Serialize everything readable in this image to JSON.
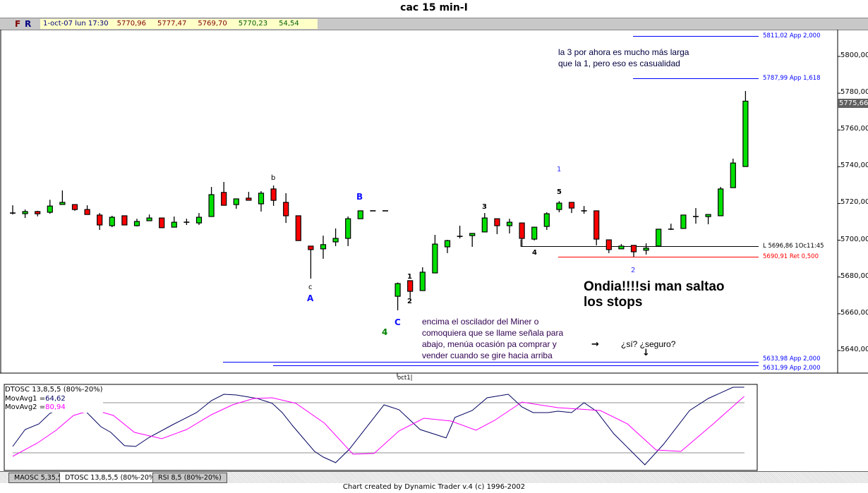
{
  "window": {
    "title": "cac 15 min-I"
  },
  "toolbar": {
    "f_label": "F",
    "r_label": "R",
    "info": {
      "datetime": "1-oct-07 lun 17:30",
      "open": "5770,96",
      "high": "5777,47",
      "low": "5769,70",
      "close": "5770,23",
      "extra": "54,54"
    }
  },
  "price_axis": {
    "ticks": [
      "5800,00",
      "5780,00",
      "5760,00",
      "5740,00",
      "5720,00",
      "5700,00",
      "5680,00",
      "5660,00",
      "5640,00"
    ],
    "tick_values": [
      5800,
      5780,
      5760,
      5740,
      5720,
      5700,
      5680,
      5660,
      5640
    ],
    "current_price": "5775,66"
  },
  "time_axis": {
    "label": "oct1|"
  },
  "levels": [
    {
      "price": 5811.02,
      "label": "5811,02 App 2,000",
      "color": "#0000ff"
    },
    {
      "price": 5787.99,
      "label": "5787,99 App 1,618",
      "color": "#0000ff"
    },
    {
      "price": 5696.86,
      "label": "L 5696,86 1Oc11:45",
      "color": "#000000"
    },
    {
      "price": 5690.91,
      "label": "5690,91 Ret 0,500",
      "color": "#ff0000"
    },
    {
      "price": 5633.98,
      "label": "5633,98 App 2,000",
      "color": "#0000ff"
    },
    {
      "price": 5631.99,
      "label": "5631,99 App 2,000",
      "color": "#0000ff"
    }
  ],
  "wave_labels": {
    "b": "b",
    "c": "c",
    "A": "A",
    "B": "B",
    "C": "C",
    "green4": "4",
    "w1": "1",
    "w2": "2",
    "w3": "3",
    "w4": "4",
    "w5": "5",
    "blue1": "1",
    "blue2": "2"
  },
  "annotations": {
    "top_note": [
      "la 3 por ahora es mucho más larga",
      "que la 1, pero eso es casualidad"
    ],
    "osc_note": [
      "encima el oscilador del Miner o",
      "comoquiera que se llame señala para",
      "abajo, menúa ocasión pa comprar y",
      "vender cuando se gire hacia arriba"
    ],
    "arrow_right": "→",
    "question": "¿sí? ¿seguro?",
    "arrow_down": "↓",
    "big_note": [
      "Ondia!!!!si man saltao",
      "los stops"
    ]
  },
  "colors": {
    "up": "#00e000",
    "down": "#ff0000",
    "osc_line": "#000060",
    "osc_avg": "#ff00ff",
    "level_line": "#909090"
  },
  "chart_data": [
    {
      "type": "candlestick",
      "title": "cac 15 min-I",
      "ylim": [
        5625,
        5815
      ],
      "ohlc": [
        [
          5714.8,
          5719,
          5714,
          5714.8
        ],
        [
          5714.8,
          5716.7,
          5712.1,
          5715.6
        ],
        [
          5715.6,
          5716,
          5713,
          5714.4
        ],
        [
          5715.2,
          5722,
          5714.4,
          5718.6
        ],
        [
          5719.8,
          5727.1,
          5719.8,
          5720.6
        ],
        [
          5719.4,
          5719.4,
          5716,
          5716.7
        ],
        [
          5716.7,
          5719,
          5714,
          5714
        ],
        [
          5713.7,
          5714.8,
          5705.6,
          5708.3
        ],
        [
          5707.9,
          5713.3,
          5707.1,
          5712.5
        ],
        [
          5713.3,
          5713.3,
          5708.3,
          5708.3
        ],
        [
          5707.9,
          5711.7,
          5707.5,
          5710.2
        ],
        [
          5710.6,
          5714,
          5710.6,
          5712.1
        ],
        [
          5712.1,
          5712.1,
          5706.8,
          5706.8
        ],
        [
          5707.1,
          5712.9,
          5707.1,
          5709.8
        ],
        [
          5709.8,
          5711.7,
          5708.3,
          5709.8
        ],
        [
          5709.4,
          5714.8,
          5708.3,
          5712.5
        ],
        [
          5712.9,
          5729,
          5712.9,
          5724.8
        ],
        [
          5726,
          5731.7,
          5719,
          5719
        ],
        [
          5719.4,
          5722.5,
          5717.1,
          5722.5
        ],
        [
          5722.9,
          5726.3,
          5722.1,
          5722.1
        ],
        [
          5719.8,
          5726.7,
          5715.6,
          5725.6
        ],
        [
          5727.9,
          5729.8,
          5718.7,
          5721.7
        ],
        [
          5720.6,
          5725.6,
          5709.4,
          5713.3
        ],
        [
          5713.3,
          5713.3,
          5699.8,
          5699.8
        ],
        [
          5696.8,
          5696.8,
          5679.1,
          5694.9
        ],
        [
          5695.3,
          5702.5,
          5689.9,
          5697.6
        ],
        [
          5699.1,
          5706.4,
          5696.8,
          5701
        ],
        [
          5701,
          5712.9,
          5696.8,
          5711.7
        ],
        [
          5711.7,
          5716,
          5711.7,
          5716
        ],
        [
          5716,
          5716,
          5716,
          5716
        ],
        [
          5716,
          5716,
          5716,
          5716
        ],
        [
          5669.5,
          5677,
          5661.9,
          5676.4
        ],
        [
          5678,
          5678,
          5668.4,
          5672.2
        ],
        [
          5672.6,
          5685.3,
          5672.6,
          5682.6
        ],
        [
          5682.2,
          5702.9,
          5682.2,
          5697.9
        ],
        [
          5696.4,
          5700.2,
          5693,
          5699.8
        ],
        [
          5702.1,
          5707.9,
          5701,
          5702.1
        ],
        [
          5702.5,
          5703.7,
          5696.4,
          5703.7
        ],
        [
          5704.5,
          5714.8,
          5704.5,
          5712.1
        ],
        [
          5711.7,
          5711.7,
          5703.3,
          5707.9
        ],
        [
          5707.9,
          5711.7,
          5703.7,
          5709.8
        ],
        [
          5709.4,
          5709.4,
          5696.8,
          5701
        ],
        [
          5700.6,
          5707.1,
          5699.9,
          5707.1
        ],
        [
          5707.5,
          5715.2,
          5705.6,
          5714.4
        ],
        [
          5716.7,
          5721.3,
          5715.2,
          5720.2
        ],
        [
          5720.6,
          5720.6,
          5714.8,
          5717.5
        ],
        [
          5716,
          5718.6,
          5714.4,
          5716
        ],
        [
          5716,
          5716,
          5697.2,
          5700.6
        ],
        [
          5700.2,
          5700.2,
          5693,
          5694.9
        ],
        [
          5695.3,
          5697.9,
          5695.3,
          5696.8
        ],
        [
          5697.2,
          5697.2,
          5691,
          5693.7
        ],
        [
          5694.9,
          5698.3,
          5692.2,
          5695.7
        ],
        [
          5696.8,
          5706,
          5696.8,
          5706
        ],
        [
          5706,
          5709,
          5705.6,
          5706
        ],
        [
          5706.4,
          5713.7,
          5706.4,
          5713.7
        ],
        [
          5712.9,
          5717.5,
          5709,
          5712.9
        ],
        [
          5712.9,
          5714,
          5708.7,
          5714
        ],
        [
          5713.3,
          5729,
          5713.3,
          5727.9
        ],
        [
          5728.6,
          5744.4,
          5728.6,
          5742
        ],
        [
          5740.1,
          5781.2,
          5740.1,
          5775.66
        ]
      ]
    },
    {
      "type": "line",
      "title": "DTOSC 13,8,5,5 (80%-20%)",
      "ylim": [
        0,
        100
      ],
      "levels": [
        80,
        20
      ],
      "series": [
        {
          "name": "MovAvg1",
          "value_label": "64,62",
          "points": [
            [
              0,
              27.6
            ],
            [
              1,
              47.9
            ],
            [
              2.1,
              54.6
            ],
            [
              3,
              67.3
            ],
            [
              5.2,
              80
            ],
            [
              7.1,
              51.3
            ],
            [
              7.9,
              44.5
            ],
            [
              9,
              28.5
            ],
            [
              9.9,
              27.6
            ],
            [
              11,
              38.6
            ],
            [
              12.9,
              53.8
            ],
            [
              14.8,
              68.2
            ],
            [
              16,
              82.5
            ],
            [
              17,
              90.1
            ],
            [
              18,
              89.3
            ],
            [
              19.7,
              85.1
            ],
            [
              20.9,
              79.2
            ],
            [
              21.7,
              68.2
            ],
            [
              22.6,
              51.3
            ],
            [
              24.3,
              21.7
            ],
            [
              25,
              14.9
            ],
            [
              26,
              8.2
            ],
            [
              27.1,
              24.2
            ],
            [
              29.9,
              77.5
            ],
            [
              31.1,
              71.6
            ],
            [
              32.8,
              47.9
            ],
            [
              34.9,
              37.8
            ],
            [
              35.6,
              62.3
            ],
            [
              37,
              70.7
            ],
            [
              38.2,
              85.9
            ],
            [
              39.9,
              90.1
            ],
            [
              41,
              74.9
            ],
            [
              41.9,
              68.2
            ],
            [
              43.1,
              68.2
            ],
            [
              43.9,
              69.9
            ],
            [
              45,
              68.2
            ],
            [
              46,
              80
            ],
            [
              47,
              69.9
            ],
            [
              48.4,
              42.8
            ],
            [
              50.9,
              5.6
            ],
            [
              52.4,
              30.1
            ],
            [
              54.5,
              70.7
            ],
            [
              56,
              85.1
            ],
            [
              58,
              98.6
            ],
            [
              58.9,
              98.6
            ]
          ]
        },
        {
          "name": "MovAvg2",
          "value_label": "80,94",
          "points": [
            [
              0,
              15.8
            ],
            [
              2,
              31.8
            ],
            [
              3.5,
              47
            ],
            [
              4.9,
              64.8
            ],
            [
              6.5,
              71.6
            ],
            [
              8.1,
              64.8
            ],
            [
              9.8,
              44.5
            ],
            [
              12,
              36.9
            ],
            [
              14,
              47.9
            ],
            [
              16,
              65.6
            ],
            [
              17.7,
              77.5
            ],
            [
              19.4,
              85.1
            ],
            [
              20.9,
              85.9
            ],
            [
              22.8,
              79.2
            ],
            [
              25.1,
              55.5
            ],
            [
              27.4,
              18.3
            ],
            [
              29.1,
              19.2
            ],
            [
              31.1,
              46.2
            ],
            [
              33.1,
              61.4
            ],
            [
              35.3,
              58
            ],
            [
              37.3,
              47
            ],
            [
              38.8,
              58.9
            ],
            [
              41,
              80.8
            ],
            [
              43.9,
              74.1
            ],
            [
              47.3,
              70.7
            ],
            [
              49.5,
              54.6
            ],
            [
              51.8,
              23.4
            ],
            [
              53.8,
              21.7
            ],
            [
              56.4,
              54.6
            ],
            [
              58.9,
              87.6
            ]
          ]
        }
      ]
    }
  ],
  "osc_legend": {
    "title": "DTOSC 13,8,5,5 (80%-20%)",
    "avg1_label": "MovAvg1 =",
    "avg1_value": "64,62",
    "avg2_label": "MovAvg2 =",
    "avg2_value": "80,94"
  },
  "tabs": [
    {
      "label": "MAOSC 5,35,5",
      "active": false
    },
    {
      "label": "DTOSC 13,8,5,5 (80%-20%)",
      "active": true
    },
    {
      "label": "RSI 8,5 (80%-20%)",
      "active": false
    }
  ],
  "footer": "Chart created by Dynamic Trader v.4  (c)  1996-2002"
}
